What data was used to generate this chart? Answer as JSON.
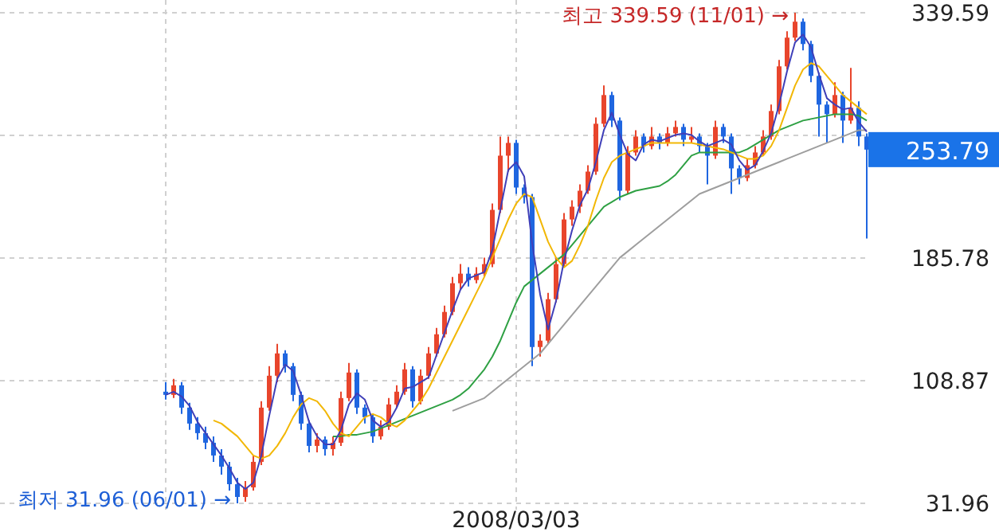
{
  "chart_data": {
    "type": "candlestick",
    "categories": [
      null,
      null,
      null,
      null,
      null,
      null,
      null,
      null,
      null,
      null,
      null,
      null,
      null,
      null,
      null,
      null,
      null,
      null,
      null,
      null,
      null,
      null,
      null,
      null,
      null,
      null,
      null,
      null,
      null,
      null,
      null,
      null,
      null,
      null,
      null,
      null,
      null,
      null,
      null,
      null,
      null,
      null,
      null,
      null,
      "2008/03/03",
      null,
      null,
      null,
      null,
      null,
      null,
      null,
      null,
      null,
      null,
      null,
      null,
      null,
      null,
      null,
      null,
      null,
      null,
      null,
      null,
      null,
      null,
      null,
      null,
      null,
      null,
      null,
      null,
      null,
      null,
      null,
      null,
      null,
      null,
      null,
      null,
      null,
      null,
      null,
      null,
      null,
      null,
      null,
      null
    ],
    "ohlc": [
      [
        102,
        108,
        97,
        100
      ],
      [
        100,
        110,
        98,
        106
      ],
      [
        106,
        108,
        88,
        92
      ],
      [
        92,
        95,
        78,
        82
      ],
      [
        82,
        86,
        72,
        76
      ],
      [
        76,
        80,
        66,
        70
      ],
      [
        70,
        74,
        58,
        62
      ],
      [
        62,
        66,
        50,
        55
      ],
      [
        55,
        58,
        40,
        44
      ],
      [
        44,
        48,
        31.96,
        36
      ],
      [
        36,
        46,
        33,
        42
      ],
      [
        42,
        62,
        40,
        58
      ],
      [
        58,
        96,
        56,
        92
      ],
      [
        92,
        118,
        90,
        112
      ],
      [
        112,
        132,
        108,
        126
      ],
      [
        126,
        128,
        114,
        118
      ],
      [
        118,
        120,
        96,
        100
      ],
      [
        100,
        102,
        78,
        82
      ],
      [
        82,
        84,
        64,
        68
      ],
      [
        68,
        76,
        64,
        72
      ],
      [
        72,
        74,
        62,
        66
      ],
      [
        66,
        74,
        62,
        70
      ],
      [
        70,
        102,
        68,
        98
      ],
      [
        98,
        120,
        96,
        114
      ],
      [
        114,
        116,
        88,
        92
      ],
      [
        92,
        94,
        82,
        86
      ],
      [
        86,
        88,
        70,
        74
      ],
      [
        74,
        84,
        72,
        80
      ],
      [
        80,
        98,
        78,
        94
      ],
      [
        94,
        106,
        92,
        102
      ],
      [
        102,
        120,
        100,
        116
      ],
      [
        116,
        118,
        92,
        96
      ],
      [
        96,
        116,
        94,
        112
      ],
      [
        112,
        130,
        110,
        126
      ],
      [
        126,
        142,
        124,
        138
      ],
      [
        138,
        156,
        136,
        152
      ],
      [
        152,
        174,
        150,
        170
      ],
      [
        170,
        182,
        166,
        176
      ],
      [
        176,
        180,
        168,
        172
      ],
      [
        172,
        180,
        170,
        176
      ],
      [
        176,
        186,
        174,
        182
      ],
      [
        182,
        220,
        180,
        216
      ],
      [
        216,
        262,
        214,
        250
      ],
      [
        250,
        262,
        240,
        258
      ],
      [
        258,
        260,
        226,
        230
      ],
      [
        230,
        232,
        220,
        224
      ],
      [
        224,
        226,
        118,
        130
      ],
      [
        130,
        138,
        124,
        134
      ],
      [
        134,
        164,
        132,
        160
      ],
      [
        160,
        186,
        158,
        182
      ],
      [
        182,
        214,
        180,
        210
      ],
      [
        210,
        222,
        206,
        218
      ],
      [
        218,
        232,
        214,
        228
      ],
      [
        228,
        244,
        226,
        240
      ],
      [
        240,
        274,
        238,
        270
      ],
      [
        270,
        294,
        268,
        288
      ],
      [
        288,
        290,
        268,
        272
      ],
      [
        272,
        274,
        222,
        228
      ],
      [
        228,
        256,
        226,
        252
      ],
      [
        252,
        266,
        250,
        262
      ],
      [
        262,
        264,
        252,
        256
      ],
      [
        256,
        268,
        254,
        262
      ],
      [
        262,
        264,
        254,
        258
      ],
      [
        258,
        268,
        256,
        264
      ],
      [
        264,
        272,
        262,
        268
      ],
      [
        268,
        270,
        256,
        260
      ],
      [
        260,
        268,
        258,
        262
      ],
      [
        262,
        264,
        252,
        256
      ],
      [
        256,
        258,
        232,
        250
      ],
      [
        250,
        272,
        248,
        268
      ],
      [
        268,
        270,
        258,
        262
      ],
      [
        262,
        264,
        226,
        242
      ],
      [
        242,
        244,
        232,
        236
      ],
      [
        236,
        248,
        234,
        244
      ],
      [
        244,
        256,
        242,
        252
      ],
      [
        252,
        266,
        250,
        262
      ],
      [
        262,
        282,
        260,
        278
      ],
      [
        278,
        310,
        276,
        306
      ],
      [
        306,
        328,
        304,
        324
      ],
      [
        324,
        339.59,
        322,
        334
      ],
      [
        334,
        336,
        316,
        320
      ],
      [
        320,
        322,
        296,
        300
      ],
      [
        300,
        302,
        262,
        282
      ],
      [
        282,
        284,
        258,
        276
      ],
      [
        276,
        296,
        274,
        288
      ],
      [
        288,
        290,
        258,
        272
      ],
      [
        272,
        305,
        270,
        280
      ],
      [
        280,
        284,
        256,
        262
      ],
      [
        262,
        264,
        198,
        253.79
      ]
    ],
    "colors": [
      "#1f66e0",
      "#e8452c",
      "#1f66e0",
      "#1f66e0",
      "#1f66e0",
      "#1f66e0",
      "#1f66e0",
      "#1f66e0",
      "#1f66e0",
      "#1f66e0",
      "#e8452c",
      "#e8452c",
      "#e8452c",
      "#e8452c",
      "#e8452c",
      "#1f66e0",
      "#1f66e0",
      "#1f66e0",
      "#1f66e0",
      "#e8452c",
      "#1f66e0",
      "#e8452c",
      "#e8452c",
      "#e8452c",
      "#1f66e0",
      "#1f66e0",
      "#1f66e0",
      "#e8452c",
      "#e8452c",
      "#e8452c",
      "#e8452c",
      "#1f66e0",
      "#e8452c",
      "#e8452c",
      "#e8452c",
      "#e8452c",
      "#e8452c",
      "#e8452c",
      "#1f66e0",
      "#e8452c",
      "#e8452c",
      "#e8452c",
      "#e8452c",
      "#e8452c",
      "#1f66e0",
      "#1f66e0",
      "#1f66e0",
      "#e8452c",
      "#e8452c",
      "#e8452c",
      "#e8452c",
      "#e8452c",
      "#e8452c",
      "#e8452c",
      "#e8452c",
      "#e8452c",
      "#1f66e0",
      "#1f66e0",
      "#e8452c",
      "#e8452c",
      "#1f66e0",
      "#e8452c",
      "#1f66e0",
      "#e8452c",
      "#e8452c",
      "#1f66e0",
      "#e8452c",
      "#1f66e0",
      "#1f66e0",
      "#e8452c",
      "#1f66e0",
      "#1f66e0",
      "#1f66e0",
      "#e8452c",
      "#e8452c",
      "#e8452c",
      "#e8452c",
      "#e8452c",
      "#e8452c",
      "#e8452c",
      "#1f66e0",
      "#1f66e0",
      "#1f66e0",
      "#1f66e0",
      "#e8452c",
      "#1f66e0",
      "#e8452c",
      "#1f66e0",
      "#1f66e0"
    ],
    "series": [
      {
        "type": "line",
        "color": "#9e9e9e",
        "values": [
          null,
          null,
          null,
          null,
          null,
          null,
          null,
          null,
          null,
          null,
          null,
          null,
          null,
          null,
          null,
          null,
          null,
          null,
          null,
          null,
          null,
          null,
          null,
          null,
          null,
          null,
          null,
          null,
          null,
          null,
          null,
          null,
          null,
          null,
          null,
          null,
          90,
          92,
          94,
          96,
          98,
          102,
          106,
          110,
          114,
          118,
          122,
          126,
          132,
          138,
          144,
          150,
          156,
          162,
          168,
          174,
          180,
          186,
          190,
          194,
          198,
          202,
          206,
          210,
          214,
          218,
          222,
          226,
          228,
          230,
          232,
          234,
          236,
          238,
          240,
          242,
          244,
          246,
          248,
          250,
          252,
          254,
          256,
          258,
          260,
          262,
          264,
          266,
          266
        ]
      },
      {
        "type": "line",
        "color": "#2ea043",
        "values": [
          null,
          null,
          null,
          null,
          null,
          null,
          null,
          null,
          null,
          null,
          null,
          null,
          null,
          null,
          null,
          null,
          null,
          null,
          null,
          null,
          null,
          74,
          74,
          75,
          75,
          76,
          77,
          79,
          81,
          83,
          85,
          87,
          89,
          91,
          93,
          95,
          97,
          100,
          104,
          110,
          116,
          124,
          134,
          146,
          158,
          168,
          172,
          176,
          180,
          184,
          188,
          194,
          200,
          206,
          212,
          218,
          221,
          224,
          226,
          228,
          229,
          230,
          231,
          234,
          238,
          244,
          250,
          252,
          252,
          252,
          252,
          252,
          252,
          254,
          257,
          260,
          263,
          266,
          268,
          270,
          272,
          273,
          274,
          275,
          276,
          276,
          276,
          275,
          272
        ]
      },
      {
        "type": "line",
        "color": "#f2b705",
        "values": [
          null,
          null,
          null,
          null,
          null,
          null,
          84,
          82,
          78,
          74,
          68,
          62,
          60,
          62,
          68,
          76,
          86,
          94,
          98,
          96,
          90,
          82,
          76,
          74,
          80,
          86,
          88,
          86,
          82,
          80,
          84,
          90,
          96,
          104,
          114,
          124,
          134,
          144,
          154,
          164,
          174,
          186,
          198,
          210,
          220,
          226,
          224,
          210,
          196,
          186,
          180,
          184,
          194,
          206,
          222,
          236,
          246,
          250,
          252,
          254,
          256,
          258,
          258,
          258,
          258,
          258,
          258,
          257,
          256,
          255,
          254,
          252,
          250,
          248,
          248,
          250,
          256,
          266,
          280,
          294,
          304,
          308,
          306,
          300,
          294,
          288,
          284,
          280,
          276
        ]
      },
      {
        "type": "line",
        "color": "#3f3fb8",
        "values": [
          100,
          102,
          99,
          93,
          83,
          76,
          69,
          62,
          54,
          45,
          41,
          45,
          62,
          87,
          110,
          119,
          115,
          100,
          83,
          74,
          69,
          69,
          78,
          94,
          101,
          97,
          84,
          80,
          83,
          92,
          104,
          105,
          108,
          111,
          125,
          139,
          153,
          166,
          173,
          175,
          177,
          191,
          216,
          241,
          246,
          237,
          195,
          163,
          141,
          159,
          184,
          203,
          219,
          229,
          246,
          266,
          277,
          263,
          251,
          247,
          257,
          260,
          259,
          261,
          263,
          264,
          263,
          259,
          256,
          258,
          260,
          257,
          247,
          241,
          244,
          253,
          264,
          282,
          303,
          321,
          326,
          318,
          301,
          286,
          282,
          279,
          280,
          271,
          265
        ]
      }
    ],
    "ylim": [
      28,
      347.6
    ],
    "yticks": [
      31.96,
      108.87,
      185.78,
      {
        "value": 262.69,
        "label": null
      },
      339.59
    ],
    "grid": true,
    "annotations": [
      "최고 339.59 (11/01) →",
      "최저 31.96 (06/01) →",
      "253.79"
    ]
  }
}
